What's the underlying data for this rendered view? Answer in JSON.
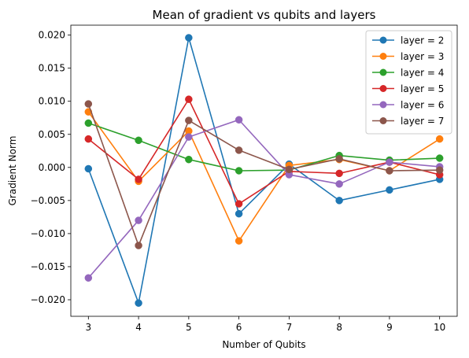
{
  "chart_data": {
    "type": "line",
    "title": "Mean of gradient vs qubits and layers",
    "xlabel": "Number of Qubits",
    "ylabel": "Gradient Norm",
    "x": [
      3,
      4,
      5,
      6,
      7,
      8,
      9,
      10
    ],
    "xlim": [
      2.65,
      10.35
    ],
    "ylim": [
      -0.0225,
      0.0215
    ],
    "xticks": [
      3,
      4,
      5,
      6,
      7,
      8,
      9,
      10
    ],
    "xtick_labels": [
      "3",
      "4",
      "5",
      "6",
      "7",
      "8",
      "9",
      "10"
    ],
    "yticks": [
      -0.02,
      -0.015,
      -0.01,
      -0.005,
      0.0,
      0.005,
      0.01,
      0.015,
      0.02
    ],
    "ytick_labels": [
      "−0.020",
      "−0.015",
      "−0.010",
      "−0.005",
      "0.000",
      "0.005",
      "0.010",
      "0.015",
      "0.020"
    ],
    "grid": false,
    "legend_position": "top-right",
    "marker": "circle",
    "series": [
      {
        "name": "layer = 2",
        "color": "#1f77b4",
        "values": [
          -0.0002,
          -0.0205,
          0.0196,
          -0.007,
          0.0005,
          -0.005,
          -0.0034,
          -0.0018
        ]
      },
      {
        "name": "layer = 3",
        "color": "#ff7f0e",
        "values": [
          0.0084,
          -0.0021,
          0.0055,
          -0.0111,
          0.0003,
          0.0012,
          -0.0005,
          0.0043
        ]
      },
      {
        "name": "layer = 4",
        "color": "#2ca02c",
        "values": [
          0.0067,
          0.0041,
          0.0012,
          -0.0005,
          -0.0004,
          0.0018,
          0.0011,
          0.0014
        ]
      },
      {
        "name": "layer = 5",
        "color": "#d62728",
        "values": [
          0.0043,
          -0.0018,
          0.0103,
          -0.0055,
          -0.0006,
          -0.0009,
          0.0008,
          -0.0011
        ]
      },
      {
        "name": "layer = 6",
        "color": "#9467bd",
        "values": [
          -0.0167,
          -0.008,
          0.0046,
          0.0072,
          -0.0011,
          -0.0025,
          0.0008,
          0.0001
        ]
      },
      {
        "name": "layer = 7",
        "color": "#8c564b",
        "values": [
          0.0096,
          -0.0118,
          0.0071,
          0.0026,
          -0.0003,
          0.0013,
          -0.0005,
          -0.0004
        ]
      }
    ]
  }
}
